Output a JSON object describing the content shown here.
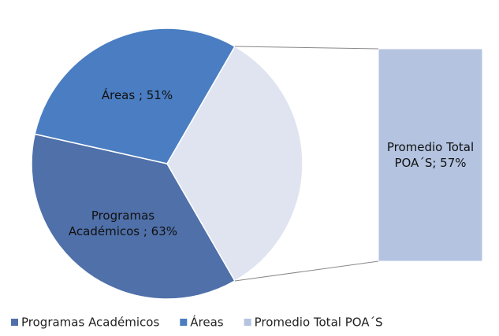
{
  "chart_data": {
    "type": "pie-of-bar",
    "categories": [
      "Programas Académicos",
      "Áreas",
      "Promedio Total POA´S"
    ],
    "values": [
      63,
      51,
      57
    ],
    "value_labels": [
      "Programas Académicos ; 63%",
      "Áreas ; 51%",
      "Promedio Total POA´S; 57%"
    ],
    "colors": [
      "#4f70a9",
      "#4a7dc1",
      "#dfe4f0"
    ],
    "bar_color": "#b3c3e0",
    "legend": "bottom"
  }
}
